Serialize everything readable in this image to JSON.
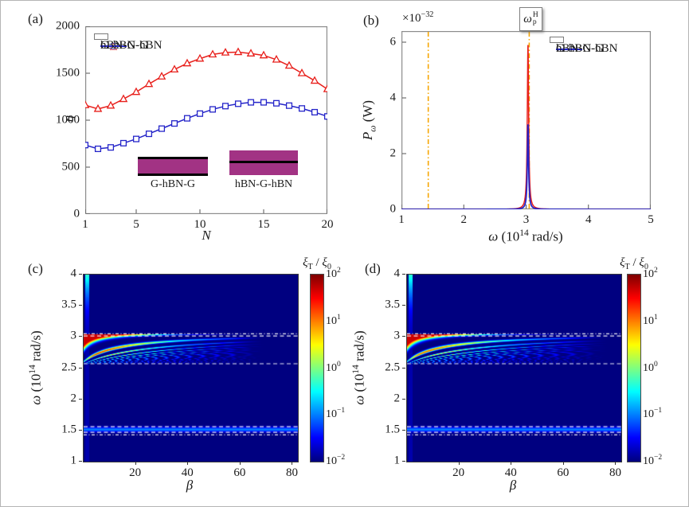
{
  "figure": {
    "bg": "#ffffff",
    "border_color": "#b5b5b5"
  },
  "panels": {
    "a": {
      "label": "(a)",
      "ylabel": "η",
      "xlabel": "N"
    },
    "b": {
      "label": "(b)",
      "scale_prefix": "×10",
      "scale_exp": "−32",
      "ylabel_main": "P",
      "ylabel_sub": "ω",
      "ylabel_suffix": " (W)",
      "xlabel_omega": "ω",
      "xlabel_open": " (10",
      "xlabel_exp": "14",
      "xlabel_close": " rad/s)",
      "annot_main": "ω",
      "annot_sup": "H",
      "annot_sub": "p"
    },
    "c": {
      "label": "(c)"
    },
    "d": {
      "label": "(d)"
    },
    "cd": {
      "ylabel_omega": "ω",
      "ylabel_open": " (10",
      "ylabel_exp": "14",
      "ylabel_close": " rad/s)",
      "xlabel": "β",
      "cbar_xi": "ξ",
      "cbar_xi_sub": "T",
      "cbar_slash": " / ",
      "cbar_xi2": "ξ",
      "cbar_xi2_sub": "0"
    }
  },
  "chart_data": [
    {
      "id": "a",
      "type": "line",
      "xlabel": "N",
      "ylabel": "η",
      "xlim": [
        1,
        20
      ],
      "ylim": [
        0,
        2000
      ],
      "xticks": [
        1,
        5,
        10,
        15,
        20
      ],
      "yticks": [
        0,
        500,
        1000,
        1500,
        2000
      ],
      "x": [
        1,
        2,
        3,
        4,
        5,
        6,
        7,
        8,
        9,
        10,
        11,
        12,
        13,
        14,
        15,
        16,
        17,
        18,
        19,
        20
      ],
      "series": [
        {
          "name": "G-hBN-G",
          "color": "#e8201c",
          "marker": "triangle",
          "values": [
            1160,
            1120,
            1155,
            1225,
            1300,
            1385,
            1465,
            1540,
            1605,
            1655,
            1700,
            1720,
            1725,
            1710,
            1690,
            1645,
            1580,
            1500,
            1420,
            1330
          ]
        },
        {
          "name": "hBN-G-hBN",
          "color": "#2525c9",
          "marker": "square",
          "values": [
            735,
            695,
            710,
            755,
            800,
            855,
            910,
            965,
            1020,
            1070,
            1115,
            1150,
            1175,
            1190,
            1190,
            1180,
            1155,
            1125,
            1085,
            1040
          ]
        }
      ],
      "legend_position": "top-left",
      "inset": {
        "labels": [
          "G-hBN-G",
          "hBN-G-hBN"
        ],
        "fill": "#a23384"
      }
    },
    {
      "id": "b",
      "type": "line",
      "xlabel": "ω (10^14 rad/s)",
      "ylabel": "P_ω (W)",
      "scale_label": "×10^−32",
      "xlim": [
        1,
        5
      ],
      "ylim": [
        0,
        6.4
      ],
      "xticks": [
        1,
        2,
        3,
        4,
        5
      ],
      "yticks": [
        0,
        2,
        4,
        6
      ],
      "series": [
        {
          "name": "G-hBN-G",
          "color": "#e8201c",
          "peak": {
            "center": 3.03,
            "height": 5.9,
            "gamma": 0.013
          }
        },
        {
          "name": "hBN-G-hBN",
          "color": "#2525c9",
          "peak": {
            "center": 3.03,
            "height": 3.05,
            "gamma": 0.012
          }
        }
      ],
      "vlines": [
        {
          "x": 1.43,
          "color": "#f7a600",
          "style": "dashdot",
          "label": ""
        },
        {
          "x": 3.05,
          "color": "#f7a600",
          "style": "dashdot",
          "label": "ω_p^H"
        }
      ],
      "legend_position": "top-right"
    },
    {
      "id": "c",
      "type": "heatmap",
      "xlabel": "β",
      "ylabel": "ω (10^14 rad/s)",
      "xlim": [
        0,
        82
      ],
      "ylim": [
        1,
        4
      ],
      "xticks": [
        20,
        40,
        60,
        80
      ],
      "yticks": [
        1,
        1.5,
        2,
        2.5,
        3,
        3.5,
        4
      ],
      "colorbar": {
        "base": "10",
        "ticks_exp": [
          "2",
          "1",
          "0",
          "−1",
          "−2"
        ],
        "range": [
          0.01,
          100
        ],
        "scale": "log",
        "colormap": "jet"
      },
      "background_value": 0.01,
      "fan": {
        "omega_min": 2.56,
        "omega_max": 3.045,
        "omega_pole": 2.52,
        "stripe_k": 0.55,
        "beta0": 2,
        "amp": 1.25,
        "beta_decay": 26,
        "taper_start": 55,
        "taper_end": 70
      },
      "hlines": [
        {
          "omega": 3.05,
          "style": "dashdot"
        },
        {
          "omega": 3.015,
          "style": "dashed"
        },
        {
          "omega": 2.57,
          "style": "dashed"
        },
        {
          "omega": 1.56,
          "style": "dashed"
        },
        {
          "omega": 1.47,
          "style": "dashed"
        },
        {
          "omega": 1.43,
          "style": "dashdot"
        }
      ],
      "band": {
        "omega_center": 1.515,
        "omega_sigma": 0.038,
        "peak_value": 0.1
      },
      "streak": {
        "beta_range": [
          0.5,
          2.0
        ]
      }
    },
    {
      "id": "d",
      "type": "heatmap",
      "xlabel": "β",
      "ylabel": "ω (10^14 rad/s)",
      "xlim": [
        0,
        82
      ],
      "ylim": [
        1,
        4
      ],
      "xticks": [
        20,
        40,
        60,
        80
      ],
      "yticks": [
        1,
        1.5,
        2,
        2.5,
        3,
        3.5,
        4
      ],
      "colorbar": {
        "base": "10",
        "ticks_exp": [
          "2",
          "1",
          "0",
          "−1",
          "−2"
        ],
        "range": [
          0.01,
          100
        ],
        "scale": "log",
        "colormap": "jet"
      },
      "background_value": 0.01,
      "fan": {
        "omega_min": 2.56,
        "omega_max": 3.045,
        "omega_pole": 2.52,
        "stripe_k": 0.55,
        "beta0": 2,
        "amp": 1.15,
        "beta_decay": 30,
        "taper_start": 60,
        "taper_end": 78
      },
      "hlines": [
        {
          "omega": 3.05,
          "style": "dashdot"
        },
        {
          "omega": 3.015,
          "style": "dashed"
        },
        {
          "omega": 2.57,
          "style": "dashed"
        },
        {
          "omega": 1.56,
          "style": "dashed"
        },
        {
          "omega": 1.47,
          "style": "dashed"
        },
        {
          "omega": 1.43,
          "style": "dashdot"
        }
      ],
      "band": {
        "omega_center": 1.515,
        "omega_sigma": 0.038,
        "peak_value": 0.1
      },
      "streak": {
        "beta_range": [
          0.5,
          2.0
        ]
      }
    }
  ],
  "colors": {
    "red": "#e8201c",
    "blue": "#2525c9",
    "orange": "#f7a600",
    "magenta": "#a23384",
    "heat_background": "#00008f",
    "axis_frame": "#8c8c8c",
    "text": "#1a1a1a",
    "dash_line": "#ffffff"
  }
}
